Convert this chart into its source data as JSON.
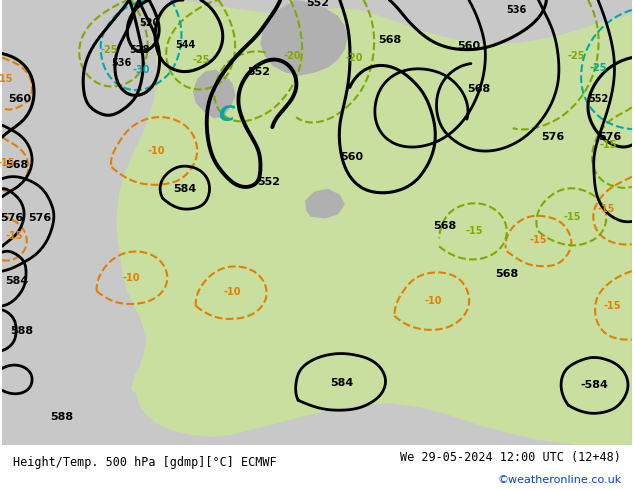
{
  "title_left": "Height/Temp. 500 hPa [gdmp][°C] ECMWF",
  "title_right": "We 29-05-2024 12:00 UTC (12+48)",
  "credit": "©weatheronline.co.uk",
  "bg_color": "#c8c8c8",
  "land_green": "#c8dfa0",
  "land_gray": "#b0b0b0",
  "bottom_bar_color": "#e8e8e8",
  "black_line": "#000000",
  "orange_line": "#e08000",
  "green_line": "#80a800",
  "cyan_line": "#00a8a8",
  "figsize": [
    6.34,
    4.9
  ],
  "dpi": 100
}
